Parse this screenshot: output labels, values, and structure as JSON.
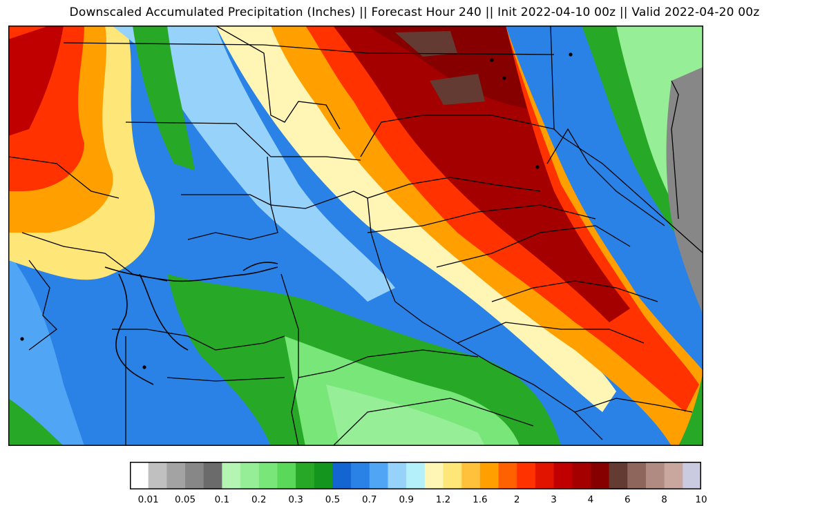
{
  "title": "Downscaled Accumulated Precipitation (Inches) || Forecast Hour 240 || Init 2022-04-10 00z || Valid 2022-04-20 00z",
  "colorbar": {
    "colors": [
      "#ffffff",
      "#c0c0c0",
      "#a3a3a3",
      "#878787",
      "#6b6b6b",
      "#b4f5b4",
      "#96ee96",
      "#78e678",
      "#5ad85a",
      "#27a827",
      "#14961e",
      "#1464d2",
      "#2a82e6",
      "#50a5f5",
      "#96d2fa",
      "#b4f0fa",
      "#fff5b4",
      "#ffe678",
      "#ffc03c",
      "#ffa000",
      "#ff6000",
      "#ff3200",
      "#e11400",
      "#c00000",
      "#a50000",
      "#870000",
      "#643b32",
      "#8f665c",
      "#b08b82",
      "#c9a79e",
      "#cacae0"
    ],
    "tick_labels": [
      "0.01",
      "0.05",
      "0.1",
      "0.2",
      "0.3",
      "0.5",
      "0.7",
      "0.9",
      "1.2",
      "1.6",
      "2",
      "3",
      "4",
      "6",
      "8",
      "10"
    ]
  }
}
